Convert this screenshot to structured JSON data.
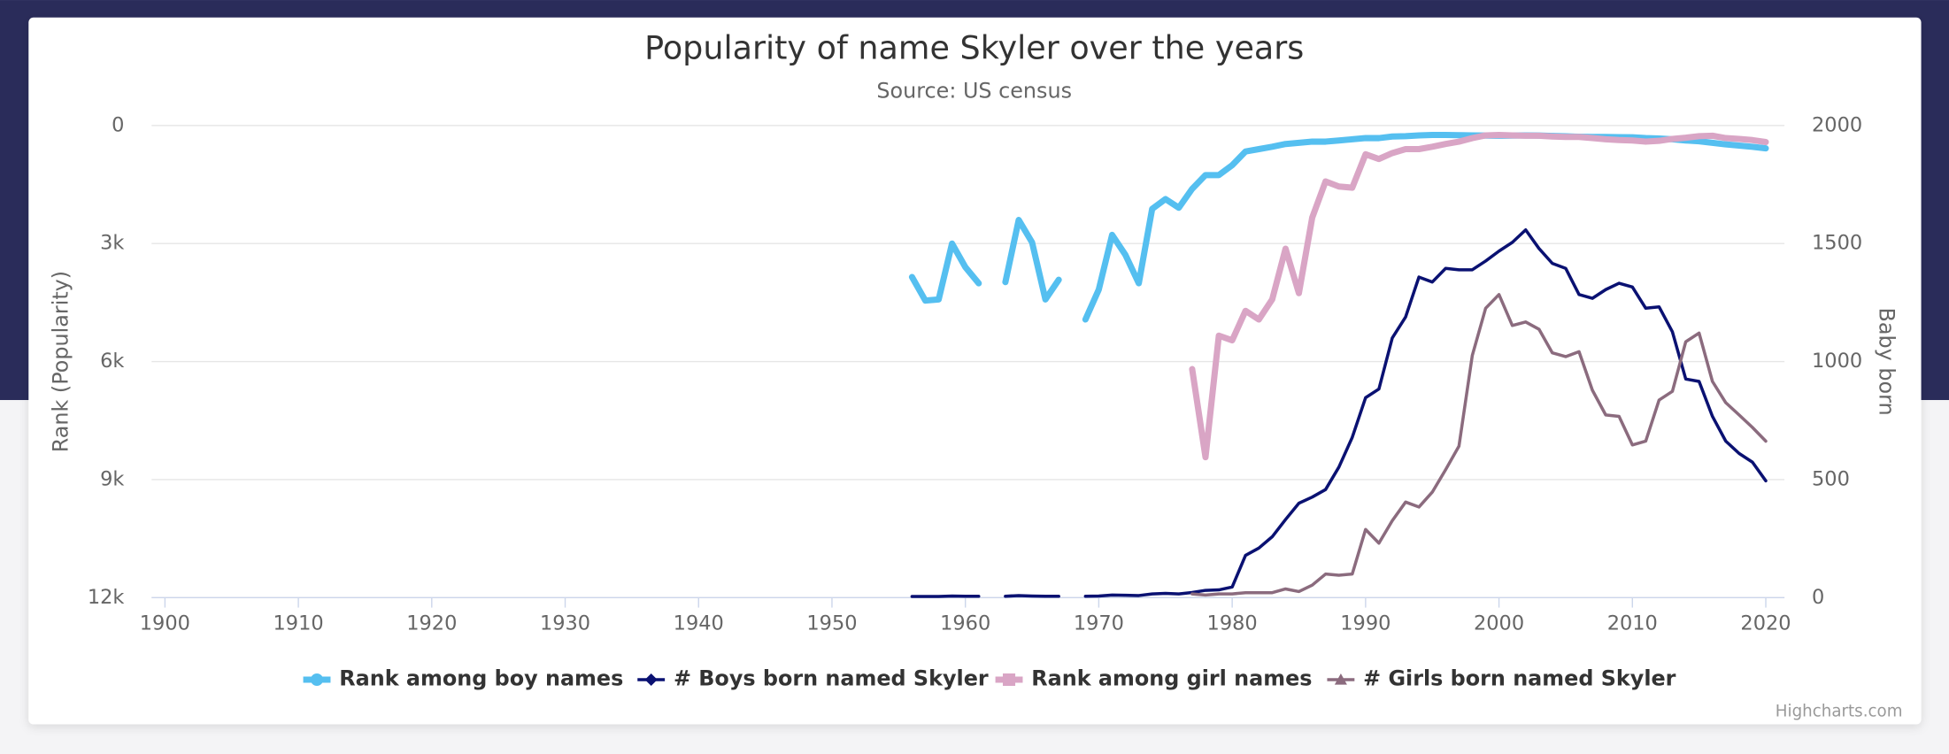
{
  "chart_data": {
    "type": "line",
    "title": "Popularity of name Skyler over the years",
    "subtitle": "Source: US census",
    "y_axis_title": "Rank (Popularity)",
    "y2_axis_title": "Baby born",
    "credits": "Highcharts.com",
    "y_reversed": true,
    "grid": true,
    "legend": "bottom",
    "xlim": [
      1899,
      2021.4
    ],
    "xticks": [
      1900,
      1910,
      1920,
      1930,
      1940,
      1950,
      1960,
      1970,
      1980,
      1990,
      2000,
      2010,
      2020
    ],
    "ylim": [
      0,
      12000
    ],
    "yticks": [
      0,
      {
        "value": 3000,
        "label": "3k"
      },
      {
        "value": 6000,
        "label": "6k"
      },
      {
        "value": 9000,
        "label": "9k"
      },
      {
        "value": 12000,
        "label": "12k"
      }
    ],
    "y2lim": [
      0,
      2000
    ],
    "y2ticks": [
      0,
      500,
      1000,
      1500,
      2000
    ],
    "x": [
      1956,
      1957,
      1958,
      1959,
      1960,
      1961,
      1962,
      1963,
      1964,
      1965,
      1966,
      1967,
      1968,
      1969,
      1970,
      1971,
      1972,
      1973,
      1974,
      1975,
      1976,
      1977,
      1978,
      1979,
      1980,
      1981,
      1982,
      1983,
      1984,
      1985,
      1986,
      1987,
      1988,
      1989,
      1990,
      1991,
      1992,
      1993,
      1994,
      1995,
      1996,
      1997,
      1998,
      1999,
      2000,
      2001,
      2002,
      2003,
      2004,
      2005,
      2006,
      2007,
      2008,
      2009,
      2010,
      2011,
      2012,
      2013,
      2014,
      2015,
      2016,
      2017,
      2018,
      2019,
      2020
    ],
    "series": [
      {
        "name": "Rank among boy names",
        "color": "#55bff0",
        "width": 5,
        "marker": "circle",
        "values": [
          3850,
          4450,
          4420,
          3000,
          3600,
          4010,
          null,
          3980,
          2400,
          2970,
          4420,
          3920,
          null,
          4930,
          4170,
          2780,
          3290,
          4010,
          2120,
          1870,
          2090,
          1610,
          1260,
          1260,
          1010,
          660,
          600,
          540,
          470,
          440,
          410,
          410,
          380,
          350,
          320,
          320,
          280,
          270,
          250,
          240,
          240,
          245,
          250,
          255,
          260,
          255,
          250,
          255,
          265,
          275,
          285,
          290,
          290,
          295,
          300,
          320,
          330,
          350,
          380,
          400,
          440,
          480,
          510,
          540,
          580
        ]
      },
      {
        "name": "# Boys born named Skyler",
        "color": "#0a1172",
        "width": 2.5,
        "marker": "diamond",
        "axis": "y2",
        "values": [
          5,
          5,
          5,
          7,
          6,
          6,
          null,
          6,
          9,
          7,
          6,
          6,
          null,
          6,
          7,
          11,
          10,
          9,
          16,
          18,
          16,
          22,
          31,
          33,
          45,
          179,
          210,
          258,
          331,
          400,
          426,
          458,
          553,
          679,
          847,
          884,
          1100,
          1189,
          1358,
          1337,
          1395,
          1389,
          1389,
          1426,
          1468,
          1505,
          1558,
          1479,
          1416,
          1395,
          1284,
          1268,
          1305,
          1332,
          1316,
          1226,
          1232,
          1126,
          926,
          916,
          768,
          663,
          611,
          574,
          495
        ]
      },
      {
        "name": "Rank among girl names",
        "color": "#d9a5c5",
        "width": 5,
        "marker": "square",
        "values": [
          null,
          null,
          null,
          null,
          null,
          null,
          null,
          null,
          null,
          null,
          null,
          null,
          null,
          null,
          null,
          null,
          null,
          null,
          null,
          null,
          null,
          6190,
          8430,
          5340,
          5460,
          4710,
          4930,
          4420,
          3130,
          4260,
          2340,
          1420,
          1550,
          1580,
          730,
          850,
          700,
          600,
          600,
          540,
          470,
          410,
          320,
          250,
          240,
          250,
          260,
          260,
          280,
          290,
          290,
          320,
          350,
          370,
          380,
          410,
          390,
          340,
          310,
          270,
          260,
          320,
          340,
          370,
          420
        ]
      },
      {
        "name": "# Girls born named Skyler",
        "color": "#8b6b7e",
        "width": 2.5,
        "marker": "triangle",
        "axis": "y2",
        "values": [
          null,
          null,
          null,
          null,
          null,
          null,
          null,
          null,
          null,
          null,
          null,
          null,
          null,
          null,
          null,
          null,
          null,
          null,
          null,
          null,
          null,
          16,
          11,
          16,
          16,
          21,
          21,
          21,
          37,
          26,
          53,
          100,
          95,
          100,
          289,
          231,
          326,
          405,
          384,
          447,
          542,
          642,
          1026,
          1226,
          1284,
          1153,
          1168,
          1137,
          1037,
          1021,
          1042,
          879,
          774,
          768,
          647,
          663,
          837,
          874,
          1084,
          1121,
          916,
          826,
          774,
          721,
          663
        ]
      }
    ]
  }
}
